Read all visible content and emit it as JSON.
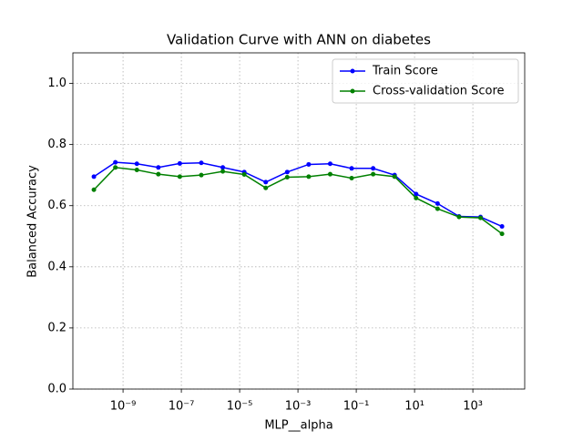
{
  "chart_data": {
    "type": "line",
    "title": "Validation Curve with ANN on diabetes",
    "xlabel": "MLP__alpha",
    "ylabel": "Balanced Accuracy",
    "xscale": "log",
    "x": [
      1e-10,
      5.456e-10,
      2.976e-09,
      1.624e-08,
      8.859e-08,
      4.833e-07,
      2.637e-06,
      1.438e-05,
      7.848e-05,
      0.0004281,
      0.002336,
      0.01274,
      0.06952,
      0.3793,
      2.069,
      11.29,
      61.58,
      336.0,
      1833,
      10000
    ],
    "series": [
      {
        "name": "Train Score",
        "color": "#0000ff",
        "values": [
          0.695,
          0.742,
          0.737,
          0.725,
          0.738,
          0.74,
          0.725,
          0.71,
          0.677,
          0.71,
          0.735,
          0.737,
          0.722,
          0.722,
          0.7,
          0.638,
          0.607,
          0.565,
          0.563,
          0.532
        ]
      },
      {
        "name": "Cross-validation Score",
        "color": "#008000",
        "values": [
          0.652,
          0.725,
          0.717,
          0.703,
          0.695,
          0.7,
          0.712,
          0.702,
          0.658,
          0.693,
          0.695,
          0.703,
          0.69,
          0.703,
          0.695,
          0.625,
          0.59,
          0.563,
          0.56,
          0.508
        ]
      }
    ],
    "xlim": [
      1.9e-11,
      60000.0
    ],
    "xticks": [
      {
        "value": 1e-09,
        "label": "10⁻⁹"
      },
      {
        "value": 1e-07,
        "label": "10⁻⁷"
      },
      {
        "value": 1e-05,
        "label": "10⁻⁵"
      },
      {
        "value": 0.001,
        "label": "10⁻³"
      },
      {
        "value": 0.1,
        "label": "10⁻¹"
      },
      {
        "value": 10,
        "label": "10¹"
      },
      {
        "value": 1000,
        "label": "10³"
      }
    ],
    "ylim": [
      0,
      1.1
    ],
    "yticks": [
      {
        "value": 0,
        "label": "0.0"
      },
      0.2,
      0.4,
      0.6,
      0.8,
      {
        "value": 1,
        "label": "1.0"
      }
    ],
    "grid": true,
    "legend": "upper right"
  }
}
